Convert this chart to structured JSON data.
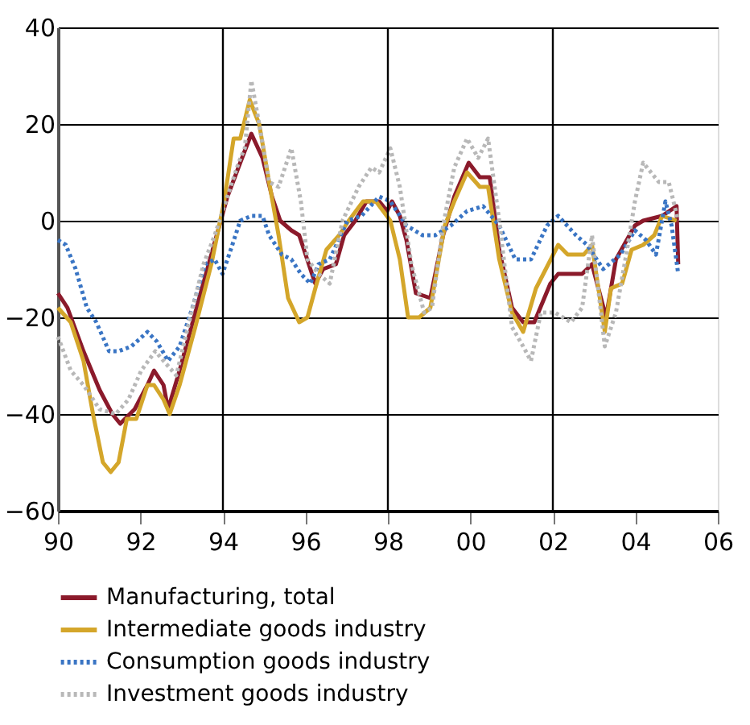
{
  "chart_data": {
    "type": "line",
    "xlim": [
      1990,
      2006
    ],
    "ylim": [
      -60,
      40
    ],
    "xticks": [
      {
        "value": 1990,
        "label": "90"
      },
      {
        "value": 1992,
        "label": "92"
      },
      {
        "value": 1994,
        "label": "94"
      },
      {
        "value": 1996,
        "label": "96"
      },
      {
        "value": 1998,
        "label": "98"
      },
      {
        "value": 2000,
        "label": "00"
      },
      {
        "value": 2002,
        "label": "02"
      },
      {
        "value": 2004,
        "label": "04"
      },
      {
        "value": 2006,
        "label": "06"
      }
    ],
    "yticks": [
      -60,
      -40,
      -20,
      0,
      20,
      40
    ],
    "grid": "y",
    "legend": "bottom",
    "marker": "none",
    "ref_lines": [
      {
        "axis": "x",
        "value": 1994,
        "label": null,
        "color": "#000000"
      },
      {
        "axis": "x",
        "value": 1998,
        "label": null,
        "color": "#000000"
      },
      {
        "axis": "x",
        "value": 2002,
        "label": null,
        "color": "#000000"
      }
    ],
    "series": [
      {
        "name": "Manufacturing, total",
        "color": "#8b1a2b",
        "line_style": "solid",
        "x": [
          1990.0,
          1990.23,
          1990.62,
          1991.01,
          1991.32,
          1991.51,
          1991.86,
          1992.17,
          1992.33,
          1992.56,
          1992.67,
          1992.95,
          1993.33,
          1993.72,
          1994.11,
          1994.42,
          1994.69,
          1994.96,
          1995.19,
          1995.39,
          1995.66,
          1995.85,
          1996.16,
          1996.24,
          1996.43,
          1996.74,
          1996.94,
          1997.21,
          1997.48,
          1997.79,
          1997.98,
          1998.1,
          1998.29,
          1998.45,
          1998.68,
          1999.03,
          1999.34,
          1999.61,
          1999.96,
          2000.23,
          2000.47,
          2000.7,
          2001.01,
          2001.28,
          2001.55,
          2001.94,
          2002.13,
          2002.36,
          2002.71,
          2002.95,
          2003.29,
          2003.53,
          2003.99,
          2004.19,
          2004.65,
          2005.0,
          2005.04
        ],
        "values": [
          -15,
          -18,
          -27,
          -35,
          -40,
          -42,
          -39,
          -34,
          -31,
          -34,
          -39,
          -31,
          -19,
          -7,
          5,
          12,
          18,
          13,
          5,
          0,
          -2,
          -3,
          -11,
          -13,
          -10,
          -9,
          -3,
          0,
          4,
          4,
          2,
          4,
          1,
          -4,
          -15,
          -16,
          -3,
          5,
          12,
          9,
          9,
          -6,
          -18,
          -21,
          -21,
          -13,
          -11,
          -11,
          -11,
          -9,
          -20,
          -8,
          -1,
          0,
          1,
          3,
          -9
        ]
      },
      {
        "name": "Intermediate goods industry",
        "color": "#d4a62a",
        "line_style": "solid",
        "x": [
          1990.0,
          1990.31,
          1990.62,
          1990.85,
          1991.09,
          1991.28,
          1991.47,
          1991.67,
          1991.9,
          1992.17,
          1992.33,
          1992.56,
          1992.71,
          1992.95,
          1993.33,
          1993.72,
          1994.03,
          1994.26,
          1994.42,
          1994.65,
          1994.88,
          1995.12,
          1995.35,
          1995.58,
          1995.85,
          1996.05,
          1996.24,
          1996.51,
          1996.82,
          1997.05,
          1997.4,
          1997.71,
          1998.06,
          1998.29,
          1998.49,
          1998.76,
          1999.03,
          1999.38,
          1999.61,
          1999.92,
          2000.23,
          2000.43,
          2000.7,
          2001.01,
          2001.28,
          2001.59,
          2002.13,
          2002.36,
          2002.75,
          2002.95,
          2003.26,
          2003.41,
          2003.68,
          2003.91,
          2004.19,
          2004.46,
          2004.65,
          2005.0
        ],
        "values": [
          -18,
          -21,
          -29,
          -40,
          -50,
          -52,
          -50,
          -41,
          -41,
          -34,
          -34,
          -37,
          -40,
          -34,
          -22,
          -9,
          4,
          17,
          17,
          25,
          20,
          8,
          -3,
          -16,
          -21,
          -20,
          -14,
          -6,
          -3,
          0,
          4,
          4,
          0,
          -8,
          -20,
          -20,
          -18,
          -1,
          4,
          10,
          7,
          7,
          -8,
          -19,
          -23,
          -14,
          -5,
          -7,
          -7,
          -5,
          -23,
          -14,
          -13,
          -6,
          -5,
          -3,
          1,
          0
        ]
      },
      {
        "name": "Consumption goods industry",
        "color": "#3a75c4",
        "line_style": "dotted",
        "x": [
          1990.0,
          1990.19,
          1990.43,
          1990.7,
          1990.93,
          1991.24,
          1991.47,
          1991.78,
          1992.17,
          1992.4,
          1992.67,
          1992.95,
          1993.26,
          1993.57,
          1993.8,
          1993.99,
          1994.19,
          1994.42,
          1994.69,
          1994.96,
          1995.12,
          1995.43,
          1995.66,
          1995.89,
          1996.12,
          1996.32,
          1996.59,
          1997.02,
          1997.36,
          1997.79,
          1998.06,
          1998.45,
          1998.84,
          1999.15,
          1999.53,
          1999.92,
          2000.31,
          2000.7,
          2001.09,
          2001.47,
          2001.86,
          2002.13,
          2002.56,
          2002.83,
          2003.22,
          2003.64,
          2003.99,
          2004.26,
          2004.5,
          2004.73,
          2004.88,
          2005.04
        ],
        "values": [
          -4,
          -5,
          -10,
          -18,
          -21,
          -27,
          -27,
          -26,
          -23,
          -25,
          -29,
          -26,
          -18,
          -9,
          -8,
          -11,
          -6,
          0,
          1,
          1,
          -3,
          -7,
          -8,
          -11,
          -13,
          -9,
          -8,
          0,
          1,
          5,
          4,
          -1,
          -3,
          -3,
          -1,
          2,
          3,
          -1,
          -8,
          -8,
          -1,
          1,
          -3,
          -5,
          -10,
          -7,
          -2,
          -4,
          -7,
          4,
          -1,
          -11
        ]
      },
      {
        "name": "Investment goods industry",
        "color": "#b8b8b8",
        "line_style": "dotted",
        "x": [
          1990.0,
          1990.31,
          1990.62,
          1991.01,
          1991.4,
          1991.71,
          1992.02,
          1992.36,
          1992.56,
          1992.87,
          1993.18,
          1993.53,
          1993.8,
          1994.11,
          1994.38,
          1994.53,
          1994.69,
          1994.88,
          1995.12,
          1995.35,
          1995.66,
          1995.89,
          1996.05,
          1996.32,
          1996.59,
          1996.9,
          1997.29,
          1997.6,
          1997.79,
          1998.06,
          1998.29,
          1998.57,
          1998.88,
          1999.07,
          1999.34,
          1999.61,
          1999.92,
          2000.19,
          2000.43,
          2000.7,
          2001.01,
          2001.28,
          2001.47,
          2001.71,
          2002.05,
          2002.44,
          2002.71,
          2002.95,
          2003.26,
          2003.53,
          2003.8,
          2003.99,
          2004.19,
          2004.57,
          2004.81,
          2005.04
        ],
        "values": [
          -24,
          -31,
          -34,
          -39,
          -40,
          -37,
          -31,
          -27,
          -29,
          -32,
          -21,
          -9,
          -3,
          5,
          12,
          15,
          29,
          20,
          8,
          7,
          15,
          4,
          -8,
          -11,
          -13,
          0,
          7,
          11,
          10,
          15,
          7,
          -9,
          -19,
          -18,
          -1,
          11,
          17,
          13,
          17,
          0,
          -22,
          -26,
          -29,
          -19,
          -19,
          -21,
          -18,
          -3,
          -26,
          -19,
          -6,
          4,
          12,
          8,
          8,
          0
        ]
      }
    ]
  }
}
